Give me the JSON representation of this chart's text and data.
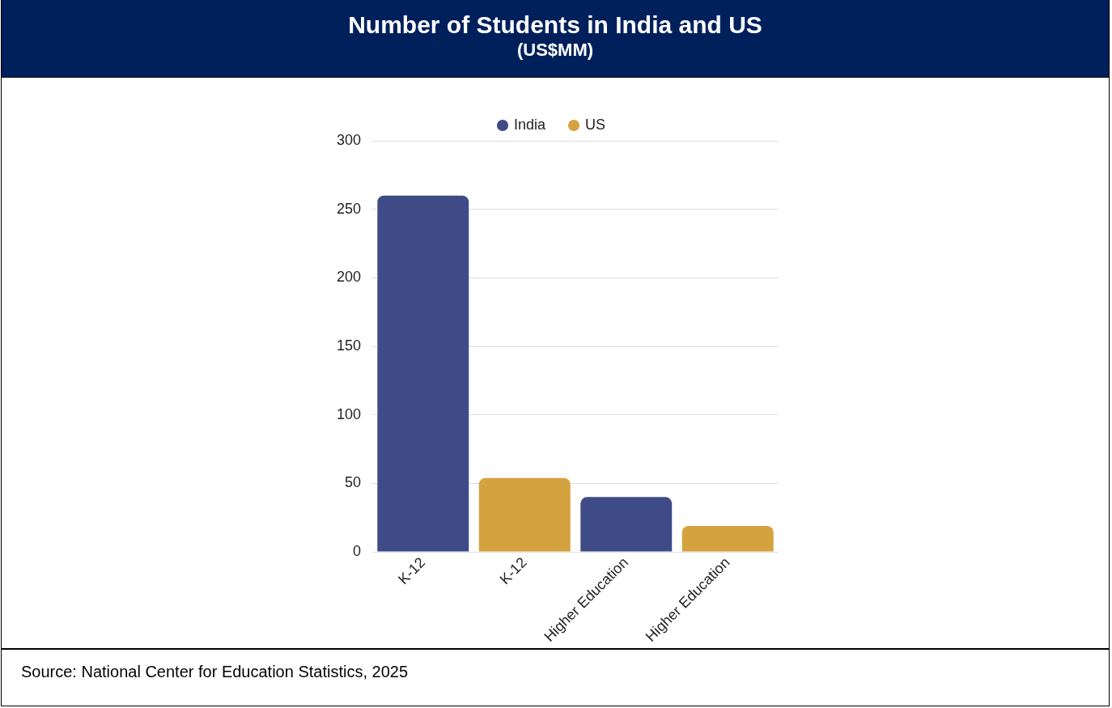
{
  "chart_data": {
    "type": "bar",
    "title": "Number of Students in India and US",
    "subtitle": "(US$MM)",
    "categories": [
      "K-12",
      "K-12",
      "Higher Education",
      "Higher Education"
    ],
    "series": [
      {
        "name": "India",
        "color": "#3f4b86",
        "values": [
          260,
          null,
          40,
          null
        ]
      },
      {
        "name": "US",
        "color": "#d4a23e",
        "values": [
          null,
          54,
          null,
          19
        ]
      }
    ],
    "ylim": [
      0,
      300
    ],
    "yticks": [
      0,
      50,
      100,
      150,
      200,
      250,
      300
    ],
    "grid": "y",
    "legend": "top",
    "annotations": [
      "Source: National Center for Education Statistics, 2025"
    ]
  }
}
